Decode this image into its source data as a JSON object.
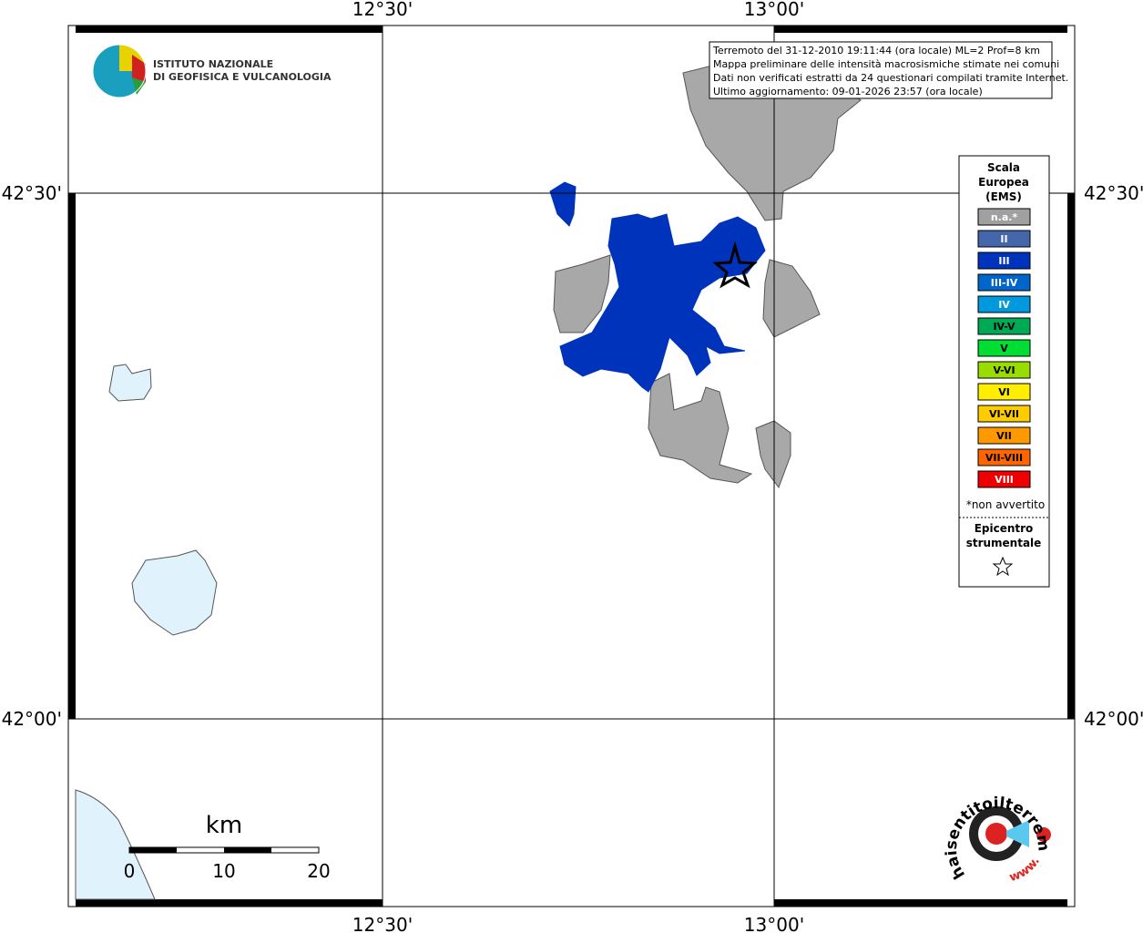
{
  "axes": {
    "top": [
      "12°30'",
      "13°00'"
    ],
    "bottom": [
      "12°30'",
      "13°00'"
    ],
    "left": [
      "42°30'",
      "42°00'"
    ],
    "right": [
      "42°30'",
      "42°00'"
    ]
  },
  "logo": {
    "line1": "ISTITUTO NAZIONALE",
    "line2": "DI GEOFISICA E VULCANOLOGIA"
  },
  "info": [
    "Terremoto del 31-12-2010 19:11:44 (ora locale) ML=2 Prof=8 km",
    "Mappa preliminare delle intensità macrosismiche stimate nei comuni",
    "Dati non verificati estratti da 24 questionari compilati tramite Internet.",
    "Ultimo aggiornamento: 09-01-2026 23:57 (ora locale)"
  ],
  "legend": {
    "title": [
      "Scala",
      "Europea",
      "(EMS)"
    ],
    "items": [
      {
        "label": "n.a.*",
        "color": "#a0a0a0"
      },
      {
        "label": "II",
        "color": "#4466aa"
      },
      {
        "label": "III",
        "color": "#0033bb"
      },
      {
        "label": "III-IV",
        "color": "#0066cc"
      },
      {
        "label": "IV",
        "color": "#0099dd"
      },
      {
        "label": "IV-V",
        "color": "#00aa55"
      },
      {
        "label": "V",
        "color": "#00dd33"
      },
      {
        "label": "V-VI",
        "color": "#99dd00"
      },
      {
        "label": "VI",
        "color": "#ffee00"
      },
      {
        "label": "VI-VII",
        "color": "#ffcc00"
      },
      {
        "label": "VII",
        "color": "#ff9900"
      },
      {
        "label": "VII-VIII",
        "color": "#ff6600"
      },
      {
        "label": "VIII",
        "color": "#ee0000"
      }
    ],
    "note": "*non avvertito",
    "epicentre": [
      "Epicentro",
      "strumentale"
    ]
  },
  "scale_bar": {
    "unit": "km",
    "ticks": [
      0,
      10,
      20
    ]
  },
  "site": {
    "name": "haisentitoilterremoto.it",
    "prefix": "www."
  }
}
